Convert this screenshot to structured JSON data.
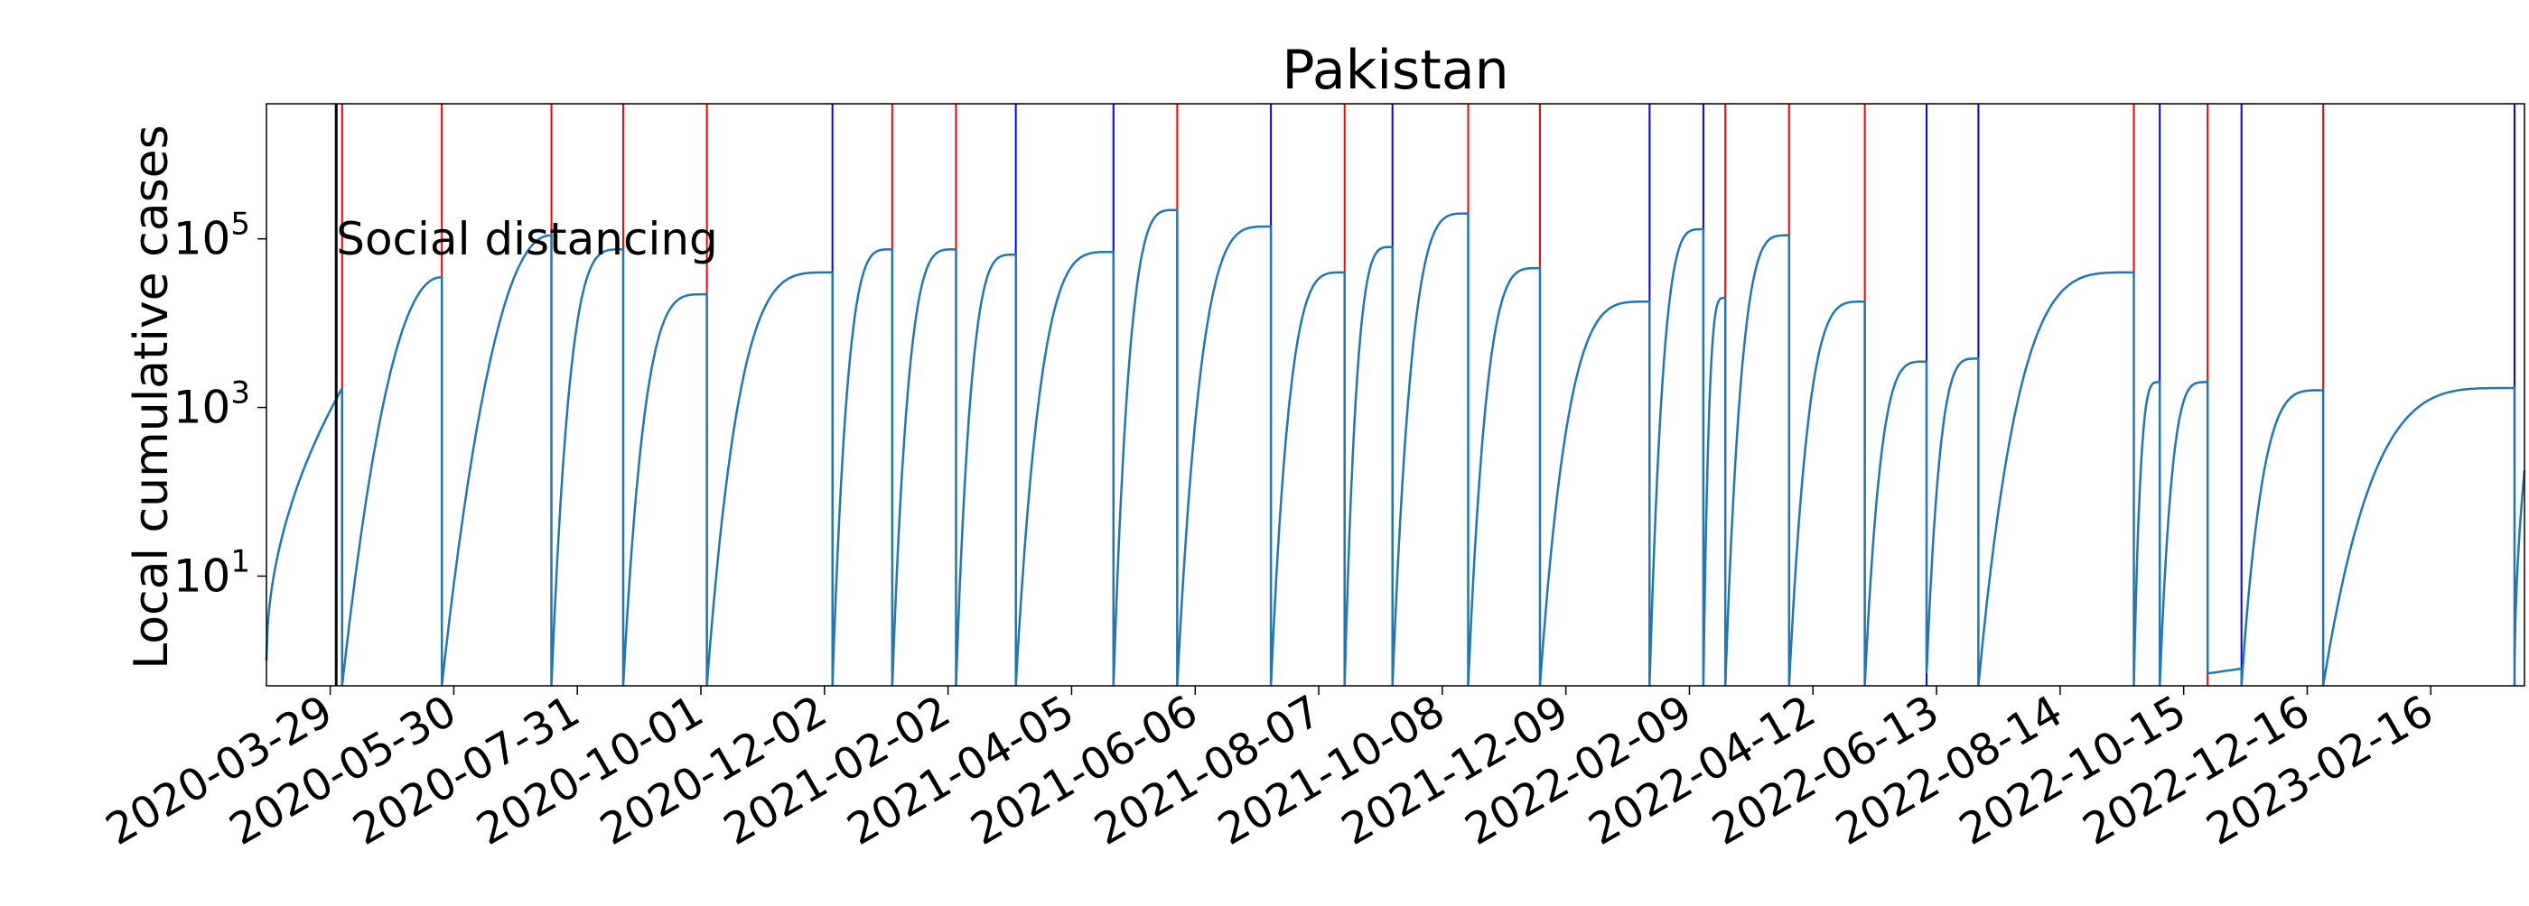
{
  "chart_data": {
    "type": "line",
    "title": "Pakistan",
    "ylabel": "Local cumulative cases",
    "xlabel": "",
    "x_range": [
      "2020-02-26",
      "2023-04-04"
    ],
    "y_scale": "log",
    "ylim": [
      0.5,
      4000000
    ],
    "y_ticks": [
      {
        "value": 10,
        "base": "10",
        "exp": "1"
      },
      {
        "value": 1000,
        "base": "10",
        "exp": "3"
      },
      {
        "value": 100000,
        "base": "10",
        "exp": "5"
      }
    ],
    "x_ticks": [
      "2020-03-29",
      "2020-05-30",
      "2020-07-31",
      "2020-10-01",
      "2020-12-02",
      "2021-02-02",
      "2021-04-05",
      "2021-06-06",
      "2021-08-07",
      "2021-10-08",
      "2021-12-09",
      "2022-02-09",
      "2022-04-12",
      "2022-06-13",
      "2022-08-14",
      "2022-10-15",
      "2022-12-16",
      "2023-02-16"
    ],
    "grid": false,
    "series_color": "#1f77b4",
    "annotation": {
      "text": "Social distancing",
      "date": "2020-04-01",
      "color": "#000000"
    },
    "red_lines": [
      "2020-04-04",
      "2020-05-24",
      "2020-07-18",
      "2020-08-23",
      "2020-10-04",
      "2021-01-05",
      "2021-02-06",
      "2021-05-28",
      "2021-08-20",
      "2021-10-21",
      "2021-11-26",
      "2022-02-27",
      "2022-03-31",
      "2022-05-08",
      "2022-09-20",
      "2022-10-27",
      "2022-12-24"
    ],
    "blue_lines": [
      "2020-12-06",
      "2021-03-08",
      "2021-04-26",
      "2021-07-14",
      "2021-09-13",
      "2022-01-20",
      "2022-02-16",
      "2022-06-08",
      "2022-07-04",
      "2022-10-03",
      "2022-11-13",
      "2023-03-30"
    ],
    "series": [
      {
        "segments": [
          {
            "start": "2020-02-26",
            "end": "2020-04-04",
            "start_value": 1,
            "end_value": 1700,
            "curve": "rise"
          },
          {
            "start": "2020-04-04",
            "end": "2020-05-24",
            "start_value": 0.5,
            "end_value": 35000,
            "curve": "log"
          },
          {
            "start": "2020-05-24",
            "end": "2020-07-18",
            "start_value": 0.5,
            "end_value": 110000,
            "curve": "log"
          },
          {
            "start": "2020-07-18",
            "end": "2020-08-23",
            "start_value": 0.5,
            "end_value": 75000,
            "curve": "sat"
          },
          {
            "start": "2020-08-23",
            "end": "2020-10-04",
            "start_value": 0.5,
            "end_value": 22000,
            "curve": "sat"
          },
          {
            "start": "2020-10-04",
            "end": "2020-12-06",
            "start_value": 0.5,
            "end_value": 40000,
            "curve": "sat"
          },
          {
            "start": "2020-12-06",
            "end": "2021-01-05",
            "start_value": 0.5,
            "end_value": 75000,
            "curve": "sat"
          },
          {
            "start": "2021-01-05",
            "end": "2021-02-06",
            "start_value": 0.5,
            "end_value": 75000,
            "curve": "sat"
          },
          {
            "start": "2021-02-06",
            "end": "2021-03-08",
            "start_value": 0.5,
            "end_value": 65000,
            "curve": "sat"
          },
          {
            "start": "2021-03-08",
            "end": "2021-04-26",
            "start_value": 0.5,
            "end_value": 70000,
            "curve": "sat"
          },
          {
            "start": "2021-04-26",
            "end": "2021-05-28",
            "start_value": 0.5,
            "end_value": 220000,
            "curve": "sat"
          },
          {
            "start": "2021-05-28",
            "end": "2021-07-14",
            "start_value": 0.5,
            "end_value": 140000,
            "curve": "sat"
          },
          {
            "start": "2021-07-14",
            "end": "2021-08-20",
            "start_value": 0.5,
            "end_value": 40000,
            "curve": "sat"
          },
          {
            "start": "2021-08-20",
            "end": "2021-09-13",
            "start_value": 0.5,
            "end_value": 80000,
            "curve": "sat"
          },
          {
            "start": "2021-09-13",
            "end": "2021-10-21",
            "start_value": 0.5,
            "end_value": 200000,
            "curve": "sat"
          },
          {
            "start": "2021-10-21",
            "end": "2021-11-26",
            "start_value": 0.5,
            "end_value": 45000,
            "curve": "sat"
          },
          {
            "start": "2021-11-26",
            "end": "2022-01-20",
            "start_value": 0.5,
            "end_value": 18000,
            "curve": "sat"
          },
          {
            "start": "2022-01-20",
            "end": "2022-02-16",
            "start_value": 0.5,
            "end_value": 130000,
            "curve": "sat"
          },
          {
            "start": "2022-02-16",
            "end": "2022-02-27",
            "start_value": 0.5,
            "end_value": 20000,
            "curve": "sat"
          },
          {
            "start": "2022-02-27",
            "end": "2022-03-31",
            "start_value": 0.5,
            "end_value": 110000,
            "curve": "sat"
          },
          {
            "start": "2022-03-31",
            "end": "2022-05-08",
            "start_value": 0.5,
            "end_value": 18000,
            "curve": "sat"
          },
          {
            "start": "2022-05-08",
            "end": "2022-06-08",
            "start_value": 0.5,
            "end_value": 3500,
            "curve": "sat"
          },
          {
            "start": "2022-06-08",
            "end": "2022-07-04",
            "start_value": 0.7,
            "end_value": 3800,
            "curve": "sat"
          },
          {
            "start": "2022-07-04",
            "end": "2022-09-20",
            "start_value": 0.5,
            "end_value": 40000,
            "curve": "sat"
          },
          {
            "start": "2022-09-20",
            "end": "2022-10-03",
            "start_value": 0.5,
            "end_value": 2000,
            "curve": "sat"
          },
          {
            "start": "2022-10-03",
            "end": "2022-10-27",
            "start_value": 0.5,
            "end_value": 2000,
            "curve": "sat"
          },
          {
            "start": "2022-10-27",
            "end": "2022-11-13",
            "start_value": 0.7,
            "end_value": 0.8,
            "curve": "flat"
          },
          {
            "start": "2022-11-13",
            "end": "2022-12-24",
            "start_value": 0.5,
            "end_value": 1600,
            "curve": "sat"
          },
          {
            "start": "2022-12-24",
            "end": "2023-03-30",
            "start_value": 0.5,
            "end_value": 1700,
            "curve": "sat"
          },
          {
            "start": "2023-03-30",
            "end": "2023-04-04",
            "start_value": 0.5,
            "end_value": 180,
            "curve": "rise"
          }
        ]
      }
    ]
  }
}
